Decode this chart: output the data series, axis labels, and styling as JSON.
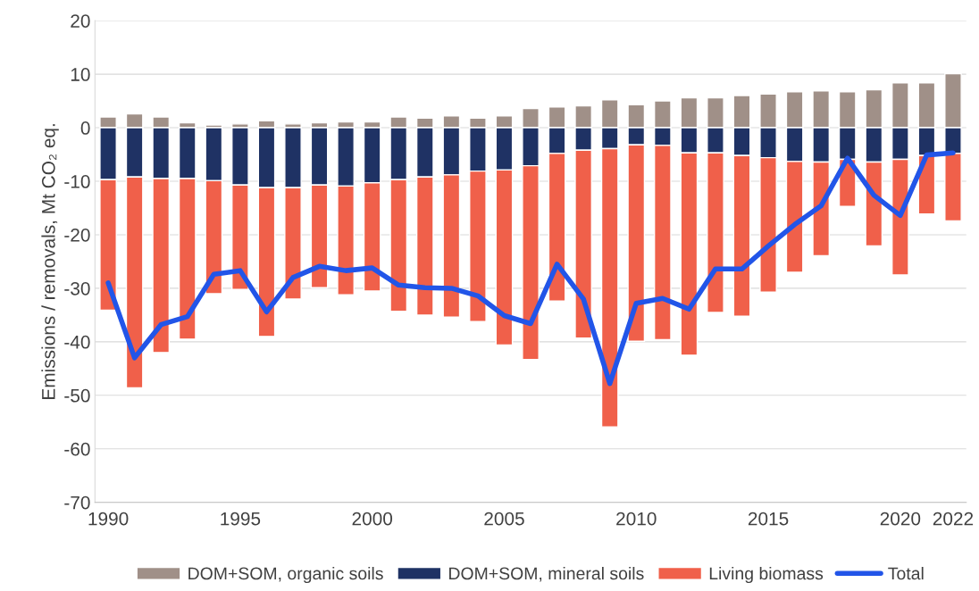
{
  "chart_data": {
    "type": "bar",
    "stacked": true,
    "ylabel": "Emissions / removals, Mt CO₂ eq.",
    "x": [
      1990,
      1991,
      1992,
      1993,
      1994,
      1995,
      1996,
      1997,
      1998,
      1999,
      2000,
      2001,
      2002,
      2003,
      2004,
      2005,
      2006,
      2007,
      2008,
      2009,
      2010,
      2011,
      2012,
      2013,
      2014,
      2015,
      2016,
      2017,
      2018,
      2019,
      2020,
      2021,
      2022
    ],
    "series": [
      {
        "name": "DOM+SOM, organic soils",
        "color": "#a09088",
        "values": [
          2.0,
          2.6,
          2.0,
          0.9,
          0.5,
          0.7,
          1.3,
          0.7,
          0.9,
          1.1,
          1.1,
          2.0,
          1.8,
          2.2,
          1.8,
          2.2,
          3.6,
          3.9,
          4.1,
          5.2,
          4.3,
          5.0,
          5.6,
          5.6,
          6.0,
          6.3,
          6.7,
          6.9,
          6.7,
          7.1,
          8.4,
          8.4,
          10.1
        ]
      },
      {
        "name": "DOM+SOM, mineral soils",
        "color": "#1f3264",
        "values": [
          -9.7,
          -9.2,
          -9.5,
          -9.5,
          -9.9,
          -10.7,
          -11.2,
          -11.2,
          -10.7,
          -10.9,
          -10.3,
          -9.7,
          -9.2,
          -8.8,
          -8.1,
          -7.9,
          -7.1,
          -4.8,
          -4.2,
          -3.9,
          -3.2,
          -3.3,
          -4.7,
          -4.7,
          -5.2,
          -5.6,
          -6.3,
          -6.4,
          -5.9,
          -6.4,
          -5.9,
          -5.2,
          -4.8
        ]
      },
      {
        "name": "Living biomass",
        "color": "#f0604a",
        "values": [
          -24.4,
          -39.4,
          -32.5,
          -30.0,
          -21.1,
          -19.5,
          -27.8,
          -20.8,
          -19.2,
          -20.3,
          -20.2,
          -24.6,
          -25.8,
          -26.6,
          -28.1,
          -32.7,
          -36.2,
          -27.6,
          -35.1,
          -52.0,
          -36.7,
          -36.3,
          -37.8,
          -29.8,
          -30.0,
          -25.1,
          -20.7,
          -17.5,
          -8.8,
          -15.7,
          -21.6,
          -10.9,
          -12.6
        ]
      },
      {
        "name": "Total",
        "type": "line",
        "color": "#2255e8",
        "values": [
          -29.0,
          -43.0,
          -36.8,
          -35.3,
          -27.4,
          -26.7,
          -34.4,
          -28.0,
          -25.9,
          -26.7,
          -26.2,
          -29.4,
          -29.9,
          -30.0,
          -31.4,
          -35.1,
          -36.6,
          -25.5,
          -32.0,
          -47.8,
          -32.8,
          -31.9,
          -33.9,
          -26.4,
          -26.4,
          -22.1,
          -18.1,
          -14.6,
          -5.7,
          -12.6,
          -16.4,
          -5.1,
          -4.7
        ]
      }
    ],
    "xlim": [
      1989.5,
      2022.5
    ],
    "xticks": [
      1990,
      1995,
      2000,
      2005,
      2010,
      2015,
      2020,
      2022
    ],
    "ylim": [
      -70,
      20
    ],
    "yticks": [
      -70,
      -60,
      -50,
      -40,
      -30,
      -20,
      -10,
      0,
      10,
      20
    ],
    "grid": "y",
    "legend": "bottom"
  }
}
